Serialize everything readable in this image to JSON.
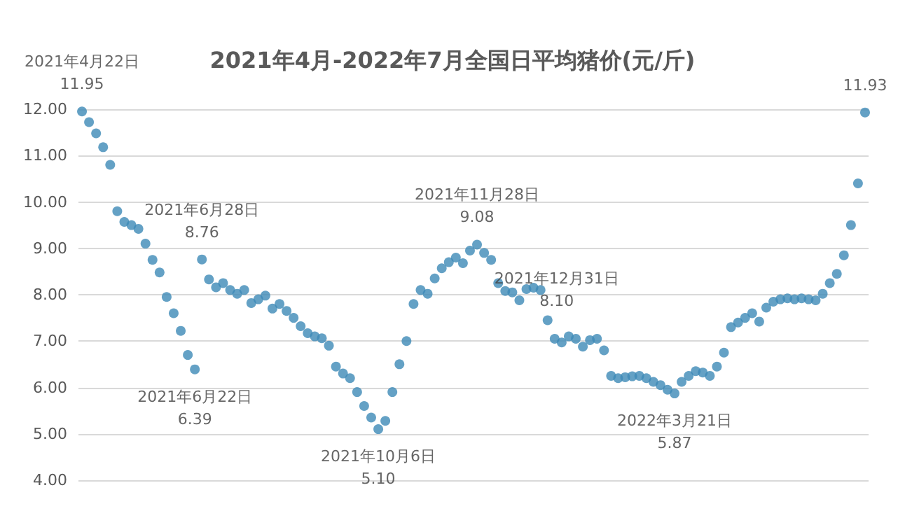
{
  "chart_data": {
    "type": "scatter",
    "title": "2021年4月-2022年7月全国日平均猪价(元/斤)",
    "categories": [
      null,
      null,
      null,
      null,
      null,
      null,
      null,
      null,
      null,
      null,
      null,
      null,
      null,
      null,
      null,
      null,
      null,
      null,
      null,
      null,
      null,
      null,
      null,
      null,
      null,
      null,
      null,
      null,
      null,
      null,
      null,
      null,
      null,
      null,
      null,
      null,
      null,
      null,
      null,
      null,
      null,
      null,
      null,
      null,
      null,
      null,
      null,
      null,
      null,
      null,
      null,
      null,
      null,
      null,
      null,
      null,
      null,
      null,
      null,
      null,
      null,
      null,
      null,
      null,
      null,
      null,
      null,
      null,
      null,
      null,
      null,
      null,
      null,
      null,
      null,
      null,
      null,
      null,
      null,
      null,
      null,
      null,
      null,
      null,
      null,
      null,
      null,
      null,
      null,
      null,
      null,
      null,
      null,
      null,
      null,
      null,
      null,
      null,
      null,
      null,
      null,
      null,
      null,
      null,
      null,
      null,
      null,
      null,
      null,
      null,
      null,
      null
    ],
    "values": [
      11.95,
      11.72,
      11.48,
      11.18,
      10.8,
      9.8,
      9.57,
      9.5,
      9.42,
      9.1,
      8.75,
      8.48,
      7.95,
      7.6,
      7.22,
      6.7,
      6.39,
      8.76,
      8.33,
      8.16,
      8.25,
      8.1,
      8.02,
      8.1,
      7.82,
      7.9,
      7.98,
      7.7,
      7.8,
      7.65,
      7.5,
      7.32,
      7.17,
      7.1,
      7.06,
      6.9,
      6.45,
      6.3,
      6.2,
      5.9,
      5.6,
      5.35,
      5.1,
      5.28,
      5.9,
      6.5,
      7.0,
      7.8,
      8.1,
      8.02,
      8.35,
      8.57,
      8.7,
      8.8,
      8.68,
      8.95,
      9.08,
      8.9,
      8.75,
      8.25,
      8.08,
      8.05,
      7.88,
      8.12,
      8.15,
      8.1,
      7.45,
      7.05,
      6.97,
      7.1,
      7.05,
      6.88,
      7.02,
      7.05,
      6.8,
      6.25,
      6.2,
      6.22,
      6.24,
      6.25,
      6.2,
      6.12,
      6.05,
      5.95,
      5.87,
      6.12,
      6.25,
      6.35,
      6.32,
      6.25,
      6.45,
      6.75,
      7.3,
      7.4,
      7.5,
      7.6,
      7.42,
      7.72,
      7.85,
      7.9,
      7.92,
      7.9,
      7.92,
      7.9,
      7.88,
      8.02,
      8.25,
      8.45,
      8.85,
      9.5,
      10.4,
      11.93
    ],
    "value_labels": [
      "2021年4月22日\n11.95",
      null,
      null,
      null,
      null,
      null,
      null,
      null,
      null,
      null,
      null,
      null,
      null,
      null,
      null,
      null,
      "2021年6月22日\n6.39",
      "2021年6月28日\n8.76",
      null,
      null,
      null,
      null,
      null,
      null,
      null,
      null,
      null,
      null,
      null,
      null,
      null,
      null,
      null,
      null,
      null,
      null,
      null,
      null,
      null,
      null,
      null,
      null,
      "2021年10月6日\n5.10",
      null,
      null,
      null,
      null,
      null,
      null,
      null,
      null,
      null,
      null,
      null,
      null,
      null,
      "2021年11月28日\n9.08",
      null,
      null,
      null,
      null,
      null,
      null,
      null,
      null,
      "2021年12月31日\n8.10",
      null,
      null,
      null,
      null,
      null,
      null,
      null,
      null,
      null,
      null,
      null,
      null,
      null,
      null,
      null,
      null,
      null,
      null,
      "2022年3月21日\n5.87",
      null,
      null,
      null,
      null,
      null,
      null,
      null,
      null,
      null,
      null,
      null,
      null,
      null,
      null,
      null,
      null,
      null,
      null,
      null,
      null,
      null,
      null,
      null,
      null,
      null,
      null,
      "11.93"
    ],
    "color": "#3d89b6",
    "marker": "circle",
    "ylim": [
      4,
      12
    ],
    "yticks": [
      {
        "value": 4,
        "label": "4.00"
      },
      {
        "value": 5,
        "label": "5.00"
      },
      {
        "value": 6,
        "label": "6.00"
      },
      {
        "value": 7,
        "label": "7.00"
      },
      {
        "value": 8,
        "label": "8.00"
      },
      {
        "value": 9,
        "label": "9.00"
      },
      {
        "value": 10,
        "label": "10.00"
      },
      {
        "value": 11,
        "label": "11.00"
      },
      {
        "value": 12,
        "label": "12.00"
      }
    ],
    "grid": "y",
    "tick_labels": "y"
  }
}
